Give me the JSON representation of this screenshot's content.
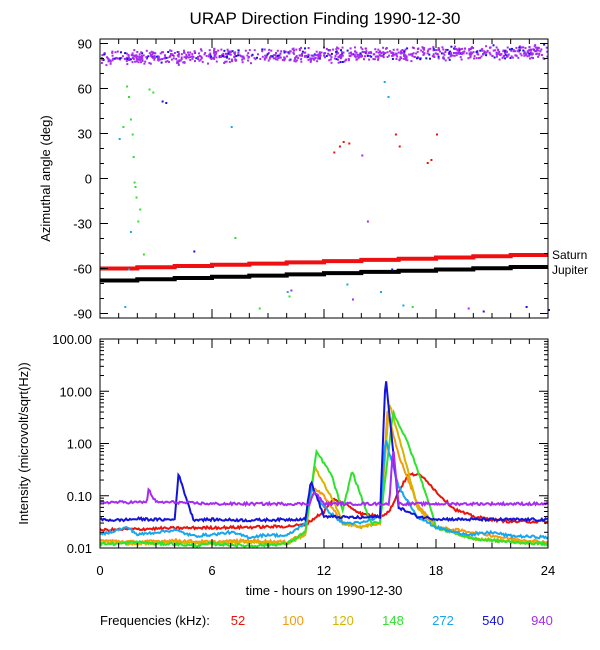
{
  "title": "URAP Direction Finding  1990-12-30",
  "colors": {
    "f52": "#e8140c",
    "f100": "#f59a10",
    "f120": "#d6b400",
    "f148": "#2ee22e",
    "f272": "#19a6ee",
    "f540": "#1414d8",
    "f940": "#a52cf0",
    "saturn": "#ee1010",
    "jupiter": "#000000"
  },
  "chart_data": [
    {
      "type": "scatter",
      "panel": "top",
      "ylabel": "Azimuthal angle (deg)",
      "xlim": [
        0,
        24
      ],
      "ylim": [
        -93,
        93
      ],
      "yticks": [
        90,
        60,
        30,
        0,
        -30,
        -60,
        -90
      ],
      "grid": false,
      "series": [
        {
          "name": "Saturn",
          "kind": "line",
          "color_key": "saturn",
          "x": [
            0,
            24
          ],
          "y": [
            -60,
            -51
          ]
        },
        {
          "name": "Jupiter",
          "kind": "line",
          "color_key": "jupiter",
          "x": [
            0,
            24
          ],
          "y": [
            -68,
            -59
          ]
        },
        {
          "name": "940",
          "kind": "band",
          "color_key": "f940",
          "x": [
            0,
            24
          ],
          "y_center": [
            81,
            85
          ],
          "y_spread": 4
        },
        {
          "name": "scatter",
          "kind": "points",
          "points": [
            [
              1.4,
              62,
              "f148"
            ],
            [
              1.5,
              55,
              "f148"
            ],
            [
              1.6,
              40,
              "f148"
            ],
            [
              1.7,
              30,
              "f148"
            ],
            [
              1.75,
              15,
              "f148"
            ],
            [
              1.8,
              -2,
              "f148"
            ],
            [
              1.85,
              -5,
              "f148"
            ],
            [
              1.9,
              -12,
              "f148"
            ],
            [
              2.0,
              -28,
              "f148"
            ],
            [
              2.1,
              -20,
              "f148"
            ],
            [
              1.2,
              35,
              "f148"
            ],
            [
              2.3,
              -50,
              "f148"
            ],
            [
              1.6,
              -35,
              "f272"
            ],
            [
              1.5,
              -60,
              "f272"
            ],
            [
              1.3,
              -85,
              "f272"
            ],
            [
              1.0,
              27,
              "f272"
            ],
            [
              2.6,
              60,
              "f148"
            ],
            [
              2.8,
              58,
              "f148"
            ],
            [
              3.3,
              52,
              "f540"
            ],
            [
              3.5,
              51,
              "f540"
            ],
            [
              5.0,
              -48,
              "f540"
            ],
            [
              7.0,
              35,
              "f272"
            ],
            [
              7.2,
              -39,
              "f148"
            ],
            [
              8.5,
              -86,
              "f148"
            ],
            [
              10.0,
              -75,
              "f272"
            ],
            [
              10.1,
              -78,
              "f148"
            ],
            [
              10.2,
              -74,
              "f940"
            ],
            [
              13.0,
              25,
              "f52"
            ],
            [
              13.3,
              24,
              "f52"
            ],
            [
              12.5,
              18,
              "f52"
            ],
            [
              12.8,
              22,
              "f52"
            ],
            [
              14.0,
              16,
              "f940"
            ],
            [
              14.3,
              -28,
              "f940"
            ],
            [
              15.0,
              -75,
              "f272"
            ],
            [
              15.2,
              65,
              "f272"
            ],
            [
              15.4,
              55,
              "f272"
            ],
            [
              15.8,
              30,
              "f52"
            ],
            [
              16.0,
              22,
              "f52"
            ],
            [
              15.6,
              -60,
              "f540"
            ],
            [
              17.5,
              11,
              "f52"
            ],
            [
              17.7,
              13,
              "f52"
            ],
            [
              18.0,
              30,
              "f52"
            ],
            [
              13.5,
              -80,
              "f940"
            ],
            [
              13.2,
              -70,
              "f272"
            ],
            [
              16.2,
              -84,
              "f272"
            ],
            [
              16.7,
              -85,
              "f148"
            ],
            [
              19.7,
              -86,
              "f940"
            ],
            [
              20.5,
              -88,
              "f540"
            ],
            [
              22.8,
              -85,
              "f540"
            ],
            [
              24.0,
              -87,
              "f540"
            ]
          ]
        }
      ],
      "annotations": [
        "Saturn",
        "Jupiter"
      ]
    },
    {
      "type": "line",
      "panel": "bottom",
      "ylabel": "Intensity (microvolt/sqrt(Hz))",
      "xlabel": "time - hours on 1990-12-30",
      "xlim": [
        0,
        24
      ],
      "xticks": [
        0,
        6,
        12,
        18,
        24
      ],
      "ylim": [
        0.01,
        100
      ],
      "yscale": "log",
      "yticks": [
        "100.00",
        "10.00",
        "1.00",
        "0.10",
        "0.01"
      ],
      "yticks_values": [
        100,
        10,
        1,
        0.1,
        0.01
      ],
      "grid": false,
      "series": [
        {
          "name": "52",
          "color_key": "f52",
          "x": [
            0,
            4,
            8,
            10,
            11,
            12,
            12.5,
            13,
            14,
            15,
            15.5,
            16,
            16.5,
            17,
            17.5,
            18,
            19,
            20,
            21,
            22
          ],
          "y": [
            0.022,
            0.024,
            0.025,
            0.026,
            0.028,
            0.05,
            0.085,
            0.075,
            0.045,
            0.04,
            0.05,
            0.12,
            0.25,
            0.26,
            0.2,
            0.12,
            0.055,
            0.04,
            0.035,
            0.032
          ]
        },
        {
          "name": "100",
          "color_key": "f100",
          "x": [
            0,
            2,
            4,
            6,
            8,
            10,
            11,
            11.3,
            12,
            13,
            14,
            15,
            15.4,
            16,
            17,
            18,
            20,
            22,
            24
          ],
          "y": [
            0.014,
            0.013,
            0.014,
            0.013,
            0.014,
            0.013,
            0.02,
            0.15,
            0.1,
            0.03,
            0.025,
            0.03,
            4.0,
            0.6,
            0.07,
            0.025,
            0.02,
            0.015,
            0.013
          ]
        },
        {
          "name": "120",
          "color_key": "f120",
          "x": [
            0,
            2,
            4,
            6,
            8,
            10,
            11,
            11.5,
            12.5,
            13,
            14,
            15,
            15.5,
            16.5,
            17,
            18,
            20,
            24
          ],
          "y": [
            0.013,
            0.012,
            0.013,
            0.012,
            0.013,
            0.012,
            0.018,
            0.35,
            0.08,
            0.03,
            0.025,
            0.03,
            6.0,
            0.3,
            0.06,
            0.025,
            0.015,
            0.012
          ]
        },
        {
          "name": "148",
          "color_key": "f148",
          "x": [
            0,
            1,
            2,
            3,
            4,
            5,
            6,
            8,
            10,
            11,
            11.6,
            12.4,
            13,
            13.5,
            14.5,
            15,
            15.7,
            16.5,
            17.5,
            18,
            20,
            22,
            24
          ],
          "y": [
            0.012,
            0.012,
            0.013,
            0.012,
            0.012,
            0.011,
            0.012,
            0.011,
            0.012,
            0.02,
            0.7,
            0.25,
            0.05,
            0.3,
            0.03,
            0.03,
            4.0,
            1.0,
            0.1,
            0.025,
            0.015,
            0.013,
            0.012
          ]
        },
        {
          "name": "272",
          "color_key": "f272",
          "x": [
            0,
            1.5,
            2,
            3,
            4,
            5,
            6,
            7,
            8,
            9,
            10,
            11,
            11.3,
            12,
            13,
            14,
            15,
            15.3,
            16,
            17,
            18,
            19,
            20,
            21,
            22,
            24
          ],
          "y": [
            0.018,
            0.025,
            0.018,
            0.02,
            0.022,
            0.017,
            0.018,
            0.02,
            0.016,
            0.018,
            0.017,
            0.03,
            0.15,
            0.06,
            0.03,
            0.03,
            0.04,
            1.2,
            0.15,
            0.04,
            0.025,
            0.02,
            0.018,
            0.02,
            0.017,
            0.016
          ]
        },
        {
          "name": "540",
          "color_key": "f540",
          "x": [
            0,
            1,
            2,
            3,
            4,
            4.2,
            5,
            6,
            8,
            10,
            11,
            11.3,
            12,
            14,
            15,
            15.3,
            16,
            17,
            18,
            20,
            22,
            24
          ],
          "y": [
            0.035,
            0.034,
            0.036,
            0.035,
            0.035,
            0.26,
            0.035,
            0.035,
            0.034,
            0.035,
            0.036,
            0.19,
            0.04,
            0.038,
            0.04,
            20.0,
            0.06,
            0.04,
            0.036,
            0.035,
            0.035,
            0.035
          ]
        },
        {
          "name": "940",
          "color_key": "f940",
          "x": [
            0,
            2.5,
            2.6,
            3,
            4,
            6,
            8,
            10,
            11.2,
            11.5,
            12,
            14,
            15.5,
            15.7,
            16,
            17,
            18,
            20,
            22,
            24
          ],
          "y": [
            0.075,
            0.075,
            0.13,
            0.075,
            0.075,
            0.07,
            0.07,
            0.07,
            0.07,
            0.12,
            0.07,
            0.07,
            0.07,
            0.9,
            0.07,
            0.07,
            0.07,
            0.07,
            0.07,
            0.07
          ]
        }
      ]
    }
  ],
  "legend": {
    "label": "Frequencies (kHz):",
    "items": [
      {
        "text": "52",
        "color_key": "f52"
      },
      {
        "text": "100",
        "color_key": "f100"
      },
      {
        "text": "120",
        "color_key": "f120"
      },
      {
        "text": "148",
        "color_key": "f148"
      },
      {
        "text": "272",
        "color_key": "f272"
      },
      {
        "text": "540",
        "color_key": "f540"
      },
      {
        "text": "940",
        "color_key": "f940"
      }
    ]
  }
}
